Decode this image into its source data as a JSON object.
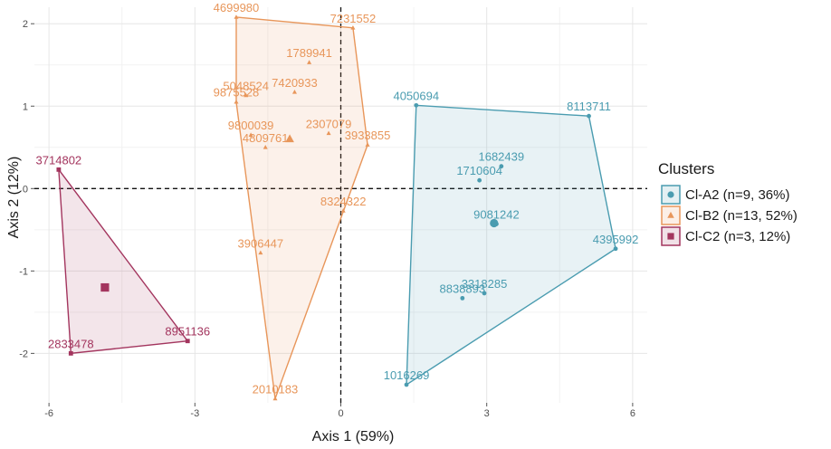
{
  "chart_data": {
    "type": "scatter",
    "xlabel": "Axis 1 (59%)",
    "ylabel": "Axis 2 (12%)",
    "xlim": [
      -6.3,
      6.3
    ],
    "ylim": [
      -2.6,
      2.2
    ],
    "xticks": [
      -6,
      -3,
      0,
      3,
      6
    ],
    "yticks": [
      -2,
      -1,
      0,
      1,
      2
    ],
    "grid": true,
    "reference_lines": {
      "x": 0,
      "y": 0,
      "style": "dashed"
    },
    "legend": {
      "title": "Clusters",
      "position": "right"
    },
    "series": [
      {
        "name": "Cl-A2 (n=9, 36%)",
        "color": "#4a9cb0",
        "marker": "circle",
        "centroid": [
          3.15,
          -0.42
        ],
        "points": [
          {
            "label": "4050694",
            "x": 1.55,
            "y": 1.01
          },
          {
            "label": "8113711",
            "x": 5.1,
            "y": 0.88
          },
          {
            "label": "1682439",
            "x": 3.3,
            "y": 0.27
          },
          {
            "label": "1710604",
            "x": 2.85,
            "y": 0.1
          },
          {
            "label": "9081242",
            "x": 3.2,
            "y": -0.43
          },
          {
            "label": "4395992",
            "x": 5.65,
            "y": -0.73
          },
          {
            "label": "3318285",
            "x": 2.95,
            "y": -1.27
          },
          {
            "label": "8838893",
            "x": 2.5,
            "y": -1.33
          },
          {
            "label": "1016269",
            "x": 1.35,
            "y": -2.38
          }
        ]
      },
      {
        "name": "Cl-B2 (n=13, 52%)",
        "color": "#e8965a",
        "marker": "triangle",
        "centroid": [
          -1.05,
          0.6
        ],
        "points": [
          {
            "label": "4699980",
            "x": -2.15,
            "y": 2.08
          },
          {
            "label": "7231552",
            "x": 0.25,
            "y": 1.95
          },
          {
            "label": "1789941",
            "x": -0.65,
            "y": 1.53
          },
          {
            "label": "7420933",
            "x": -0.95,
            "y": 1.17
          },
          {
            "label": "5048524",
            "x": -1.95,
            "y": 1.13
          },
          {
            "label": "9875528",
            "x": -2.15,
            "y": 1.05
          },
          {
            "label": "9800039",
            "x": -1.85,
            "y": 0.65
          },
          {
            "label": "2307079",
            "x": -0.25,
            "y": 0.67
          },
          {
            "label": "4809761",
            "x": -1.55,
            "y": 0.5
          },
          {
            "label": "3933855",
            "x": 0.55,
            "y": 0.53
          },
          {
            "label": "8324322",
            "x": 0.05,
            "y": -0.27
          },
          {
            "label": "3906447",
            "x": -1.65,
            "y": -0.78
          },
          {
            "label": "2010183",
            "x": -1.35,
            "y": -2.55
          }
        ]
      },
      {
        "name": "Cl-C2 (n=3, 12%)",
        "color": "#a3355e",
        "marker": "square",
        "centroid": [
          -4.85,
          -1.2
        ],
        "points": [
          {
            "label": "3714802",
            "x": -5.8,
            "y": 0.23
          },
          {
            "label": "2833478",
            "x": -5.55,
            "y": -2.0
          },
          {
            "label": "8951136",
            "x": -3.15,
            "y": -1.85
          }
        ]
      }
    ]
  }
}
